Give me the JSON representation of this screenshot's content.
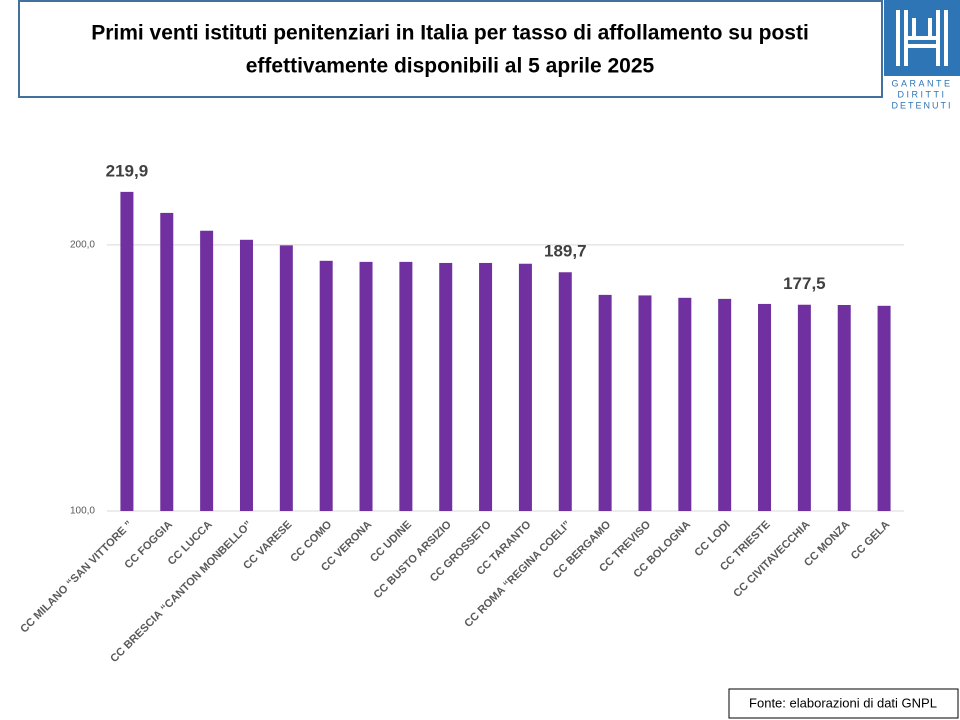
{
  "chart_data": {
    "type": "bar",
    "title": [
      "Primi venti istituti penitenziari in Italia per tasso di affollamento su posti",
      "effettivamente disponibili al 5 aprile 2025"
    ],
    "categories": [
      "CC MILANO “SAN VITTORE ”",
      "CC FOGGIA",
      "CC LUCCA",
      "CC BRESCIA “CANTON MONBELLO”",
      "CC VARESE",
      "CC COMO",
      "CC VERONA",
      "CC UDINE",
      "CC BUSTO ARSIZIO",
      "CC GROSSETO",
      "CC TARANTO",
      "CC ROMA “REGINA COELI”",
      "CC BERGAMO",
      "CC TREVISO",
      "CC BOLOGNA",
      "CC LODI",
      "CC TRIESTE",
      "CC CIVITAVECCHIA",
      "CC MONZA",
      "CC GELA"
    ],
    "values": [
      219.9,
      212.0,
      205.3,
      201.9,
      199.8,
      194.0,
      193.6,
      193.6,
      193.2,
      193.2,
      192.9,
      189.7,
      181.2,
      181.0,
      180.1,
      179.7,
      177.8,
      177.5,
      177.4,
      177.1
    ],
    "value_labels": [
      "219,9",
      null,
      null,
      null,
      null,
      null,
      null,
      null,
      null,
      null,
      null,
      "189,7",
      null,
      null,
      null,
      null,
      null,
      "177,5",
      null,
      null
    ],
    "color": "#7030a0",
    "ylim": [
      100,
      230
    ],
    "yticks": [
      {
        "value": 100,
        "label": "100,0"
      },
      {
        "value": 200,
        "label": "200,0"
      }
    ],
    "grid": true,
    "source": "Fonte: elaborazioni di dati GNPL"
  },
  "logo": {
    "lines": [
      "GARANTE",
      "DIRITTI",
      "DETENUTI"
    ]
  }
}
